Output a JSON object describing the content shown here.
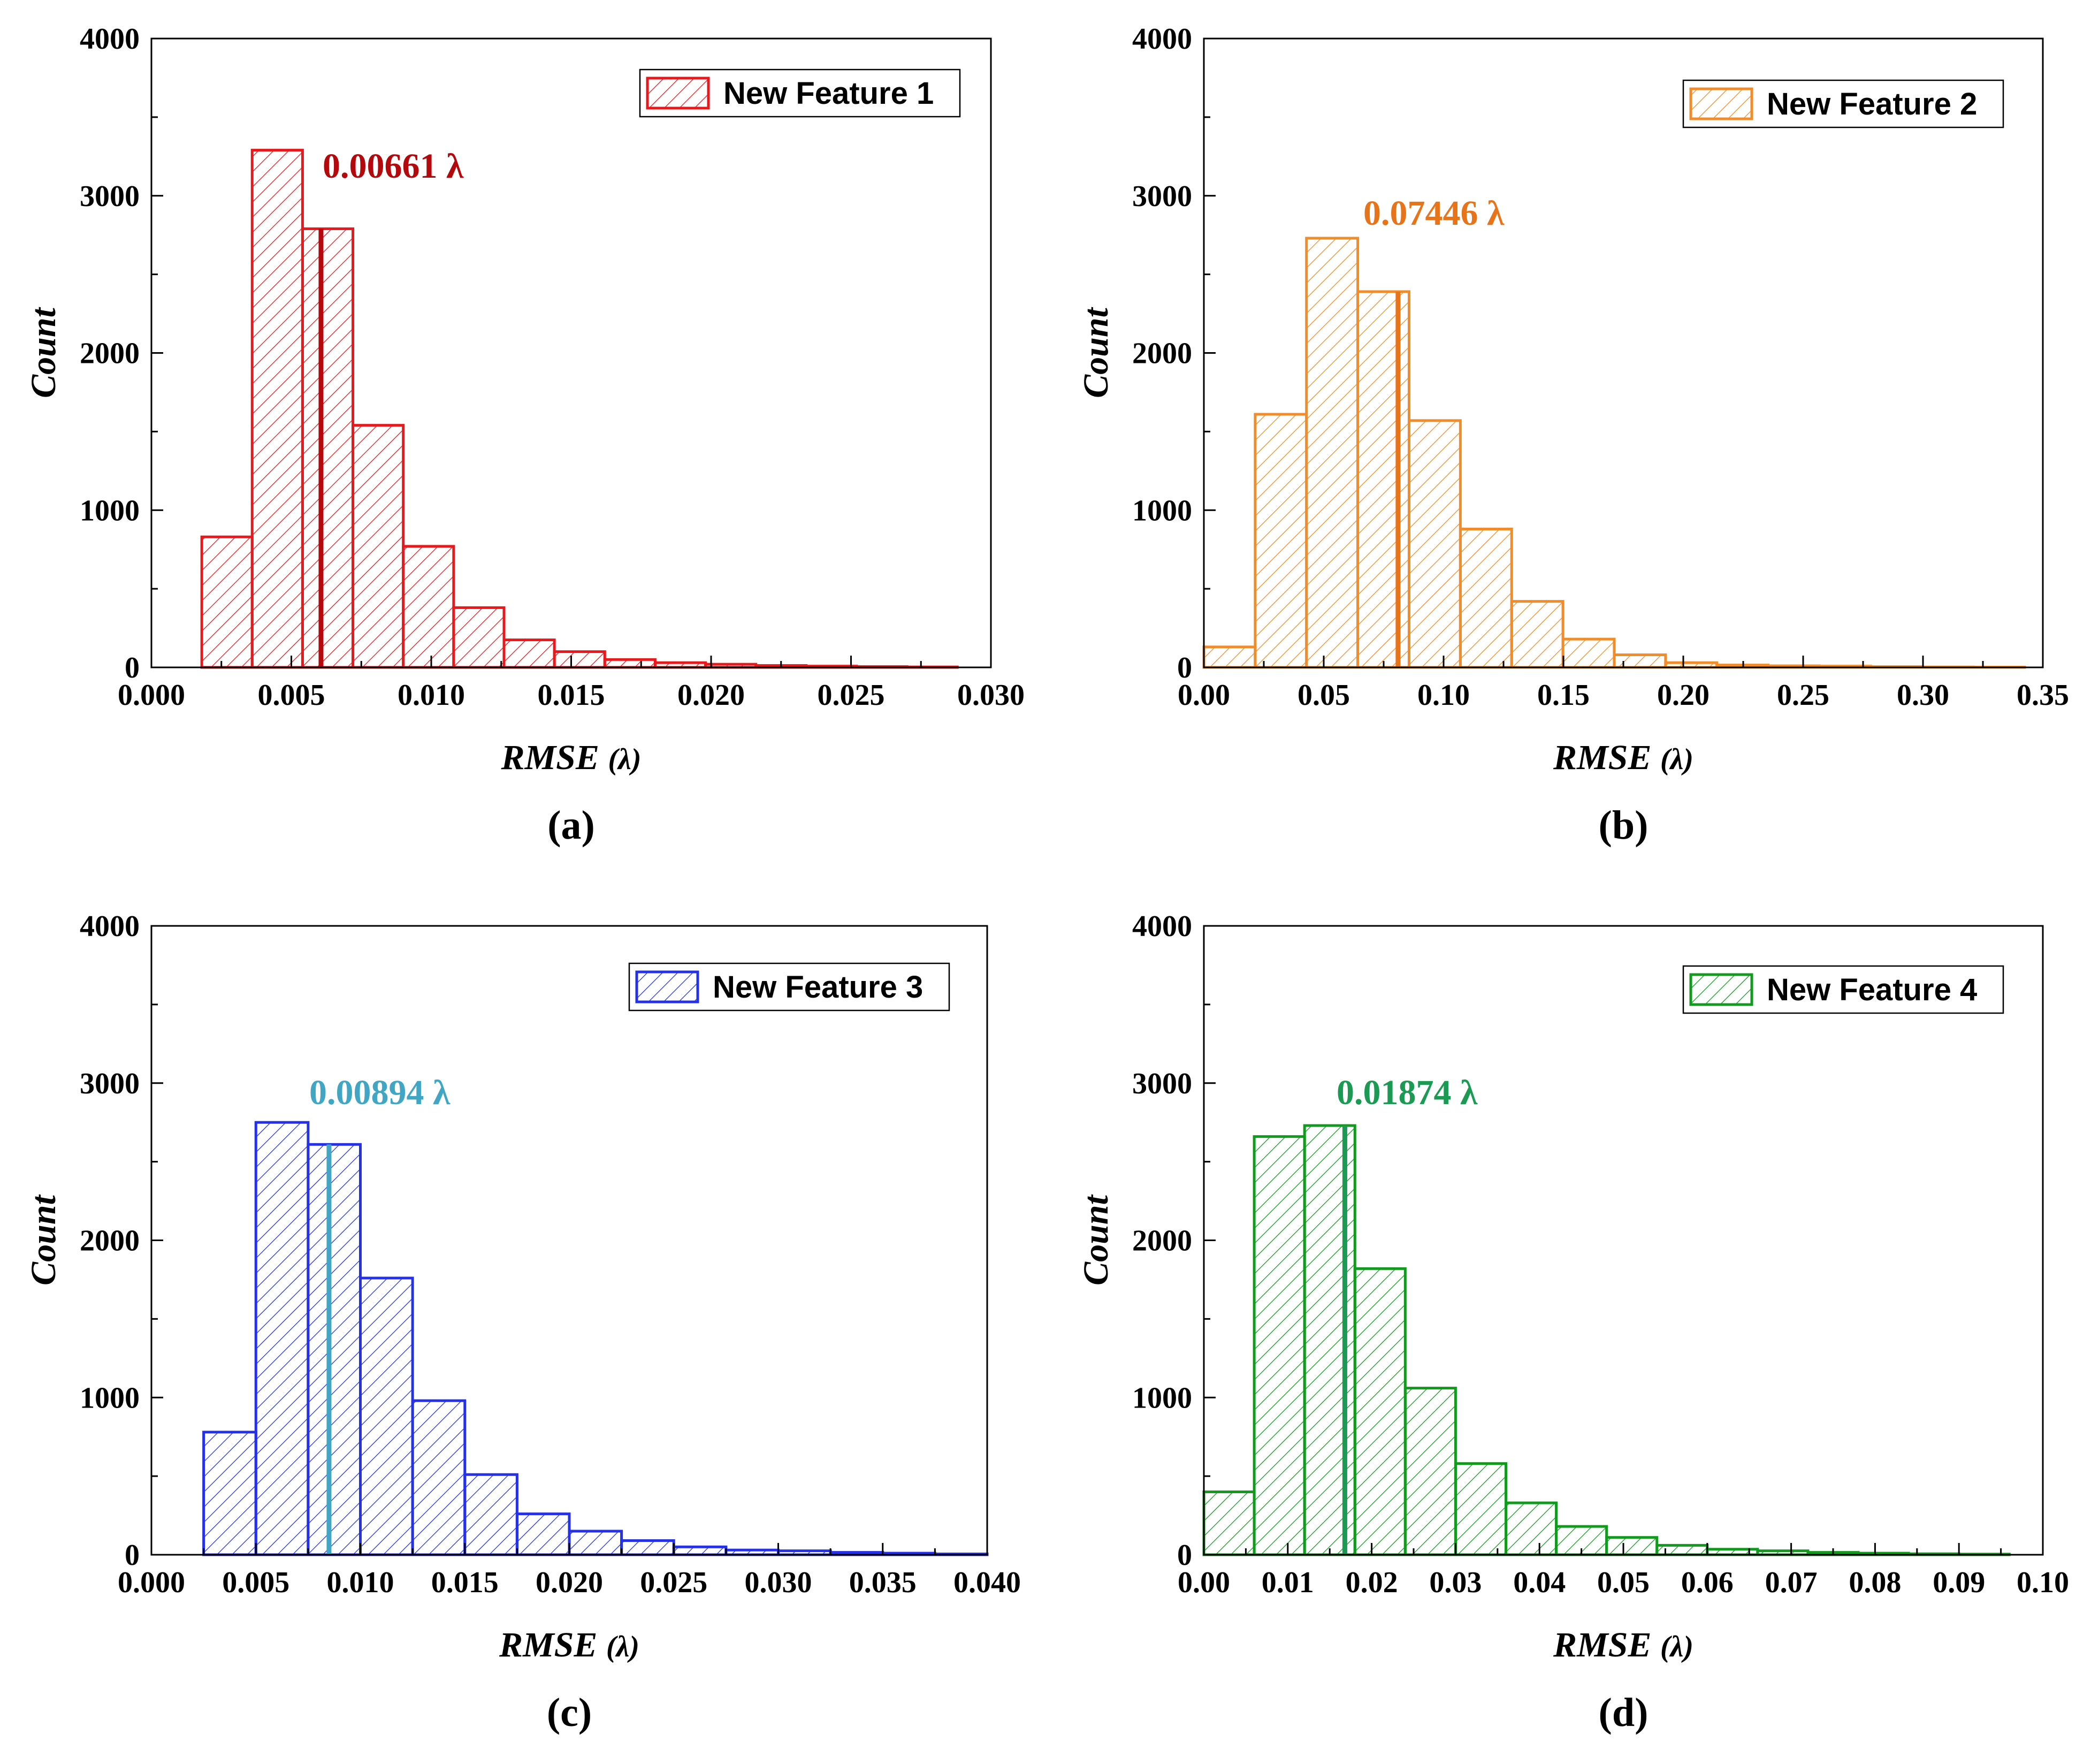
{
  "figure": {
    "panels": [
      "a",
      "b",
      "c",
      "d"
    ]
  },
  "chart_data": [
    {
      "type": "bar",
      "panel_label": "(a)",
      "legend": "New Feature 1",
      "color": "#e8191c",
      "mean_color": "#b3080c",
      "mean_value": 0.00661,
      "mean_marker_x": 0.00606,
      "mean_label": "0.00661 λ",
      "xlabel": "RMSE",
      "xlabel_unit": "(λ)",
      "ylabel": "Count",
      "xlim": [
        0,
        0.03
      ],
      "ylim": [
        0,
        4000
      ],
      "xticks": [
        "0.000",
        "0.005",
        "0.010",
        "0.015",
        "0.020",
        "0.025",
        "0.030"
      ],
      "yticks": [
        "0",
        "1000",
        "2000",
        "3000",
        "4000"
      ],
      "bin_edges": [
        0.0018,
        0.0036,
        0.0054,
        0.0072,
        0.009,
        0.0108,
        0.0126,
        0.0144,
        0.0162,
        0.018,
        0.0198,
        0.0216,
        0.0234,
        0.0252,
        0.027,
        0.0288
      ],
      "counts": [
        830,
        3290,
        2790,
        1540,
        770,
        380,
        175,
        100,
        50,
        30,
        20,
        12,
        8,
        5,
        3
      ]
    },
    {
      "type": "bar",
      "panel_label": "(b)",
      "legend": "New Feature 2",
      "color": "#f28c28",
      "mean_color": "#e8741a",
      "mean_value": 0.07446,
      "mean_marker_x": 0.081,
      "mean_label": "0.07446 λ",
      "xlabel": "RMSE",
      "xlabel_unit": "(λ)",
      "ylabel": "Count",
      "xlim": [
        0,
        0.35
      ],
      "ylim": [
        0,
        4000
      ],
      "xticks": [
        "0.00",
        "0.05",
        "0.10",
        "0.15",
        "0.20",
        "0.25",
        "0.30",
        "0.35"
      ],
      "yticks": [
        "0",
        "1000",
        "2000",
        "3000",
        "4000"
      ],
      "bin_edges": [
        0.0,
        0.0214,
        0.0428,
        0.0642,
        0.0856,
        0.107,
        0.1284,
        0.1498,
        0.1712,
        0.1926,
        0.214,
        0.2354,
        0.2568,
        0.2782,
        0.2996,
        0.321,
        0.3424
      ],
      "counts": [
        130,
        1610,
        2730,
        2390,
        1570,
        880,
        420,
        180,
        80,
        30,
        15,
        10,
        8,
        5,
        3,
        2
      ]
    },
    {
      "type": "bar",
      "panel_label": "(c)",
      "legend": "New Feature 3",
      "color": "#2431e6",
      "mean_color": "#41a6c4",
      "mean_value": 0.00894,
      "mean_marker_x": 0.0085,
      "mean_label": "0.00894 λ",
      "xlabel": "RMSE",
      "xlabel_unit": "(λ)",
      "ylabel": "Count",
      "xlim": [
        0,
        0.04
      ],
      "ylim": [
        0,
        4000
      ],
      "xticks": [
        "0.000",
        "0.005",
        "0.010",
        "0.015",
        "0.020",
        "0.025",
        "0.030",
        "0.035",
        "0.040"
      ],
      "yticks": [
        "0",
        "1000",
        "2000",
        "3000",
        "4000"
      ],
      "bin_edges": [
        0.0025,
        0.005,
        0.0075,
        0.01,
        0.0125,
        0.015,
        0.0175,
        0.02,
        0.0225,
        0.025,
        0.0275,
        0.03,
        0.0325,
        0.035,
        0.0375,
        0.04
      ],
      "counts": [
        780,
        2750,
        2610,
        1760,
        980,
        510,
        260,
        150,
        90,
        50,
        30,
        25,
        15,
        10,
        5
      ]
    },
    {
      "type": "bar",
      "panel_label": "(d)",
      "legend": "New Feature 4",
      "color": "#119a1d",
      "mean_color": "#1a9a53",
      "mean_value": 0.01874,
      "mean_marker_x": 0.0168,
      "mean_label": "0.01874 λ",
      "xlabel": "RMSE",
      "xlabel_unit": "(λ)",
      "ylabel": "Count",
      "xlim": [
        0,
        0.1
      ],
      "ylim": [
        0,
        4000
      ],
      "xticks": [
        "0.00",
        "0.01",
        "0.02",
        "0.03",
        "0.04",
        "0.05",
        "0.06",
        "0.07",
        "0.08",
        "0.09",
        "0.10"
      ],
      "yticks": [
        "0",
        "1000",
        "2000",
        "3000",
        "4000"
      ],
      "bin_edges": [
        0.0,
        0.006,
        0.012,
        0.018,
        0.024,
        0.03,
        0.036,
        0.042,
        0.048,
        0.054,
        0.06,
        0.066,
        0.072,
        0.078,
        0.084,
        0.09,
        0.096
      ],
      "counts": [
        400,
        2660,
        2730,
        1820,
        1060,
        580,
        330,
        180,
        110,
        60,
        35,
        25,
        15,
        10,
        6,
        4
      ]
    }
  ]
}
